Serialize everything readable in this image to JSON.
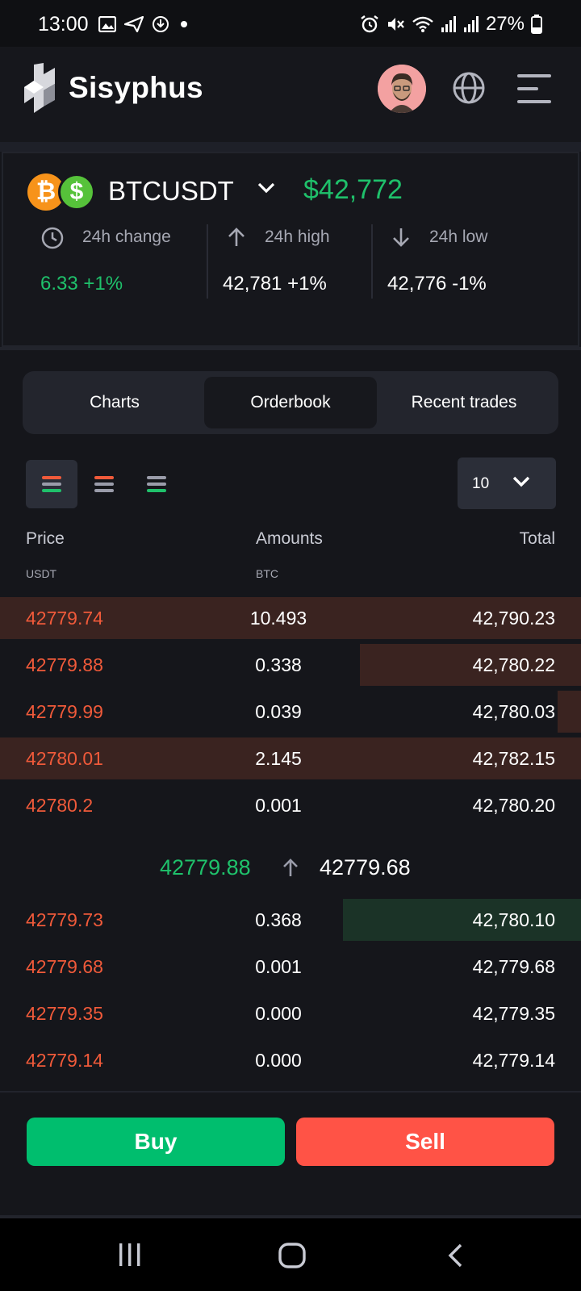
{
  "status_bar": {
    "time": "13:00",
    "battery": "27%",
    "left_icons": [
      "gallery-icon",
      "send-icon",
      "download-icon",
      "dot-icon"
    ],
    "right_icons": [
      "alarm-icon",
      "mute-icon",
      "wifi-icon",
      "signal-icon",
      "signal-icon",
      "battery-icon"
    ]
  },
  "header": {
    "brand": "Sisyphus",
    "icons": [
      "logo-icon",
      "avatar",
      "globe-icon",
      "menu-icon"
    ]
  },
  "ticker": {
    "pair": "BTCUSDT",
    "price": "$42,772",
    "coin_glyphs": [
      "₿",
      "$"
    ],
    "stats": [
      {
        "label": "24h change",
        "value": "6.33 +1%",
        "icon": "clock-icon",
        "color": "#1fc16b"
      },
      {
        "label": "24h high",
        "value": "42,781 +1%",
        "icon": "arrow-up-icon",
        "color": "#ffffff"
      },
      {
        "label": "24h low",
        "value": "42,776 -1%",
        "icon": "arrow-down-icon",
        "color": "#ffffff"
      }
    ]
  },
  "tabs": [
    {
      "label": "Charts",
      "active": false
    },
    {
      "label": "Orderbook",
      "active": true
    },
    {
      "label": "Recent trades",
      "active": false
    }
  ],
  "controls": {
    "depth": "10",
    "view_icons": [
      "orderbook-both-icon",
      "orderbook-asks-icon",
      "orderbook-bids-icon"
    ]
  },
  "columns": {
    "price": "Price",
    "price_unit": "USDT",
    "amount": "Amounts",
    "amount_unit": "BTC",
    "total": "Total"
  },
  "asks": [
    {
      "price": "42779.74",
      "amount": "10.493",
      "total": "42,790.23",
      "depth": 1.0
    },
    {
      "price": "42779.88",
      "amount": "0.338",
      "total": "42,780.22",
      "depth": 0.38
    },
    {
      "price": "42779.99",
      "amount": "0.039",
      "total": "42,780.03",
      "depth": 0.04
    },
    {
      "price": "42780.01",
      "amount": "2.145",
      "total": "42,782.15",
      "depth": 1.0
    },
    {
      "price": "42780.2",
      "amount": "0.001",
      "total": "42,780.20",
      "depth": 0
    }
  ],
  "mid": {
    "last_price": "42779.88",
    "mark_price": "42779.68"
  },
  "bids": [
    {
      "price": "42779.73",
      "amount": "0.368",
      "total": "42,780.10",
      "depth": 0.41
    },
    {
      "price": "42779.68",
      "amount": "0.001",
      "total": "42,779.68",
      "depth": 0
    },
    {
      "price": "42779.35",
      "amount": "0.000",
      "total": "42,779.35",
      "depth": 0
    },
    {
      "price": "42779.14",
      "amount": "0.000",
      "total": "42,779.14",
      "depth": 0
    }
  ],
  "actions": {
    "buy": "Buy",
    "sell": "Sell"
  },
  "colors": {
    "accent_green": "#1fc16b",
    "ask_red": "#f05a3a",
    "ask_bar": "#3a2320",
    "bid_bar": "#1b3327",
    "buy": "#00be6e",
    "sell": "#ff5346"
  },
  "nav_bar": [
    "recents-icon",
    "home-icon",
    "back-icon"
  ]
}
